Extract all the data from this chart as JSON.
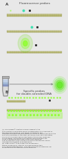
{
  "bg_color": "#e8e8e8",
  "panel_a_bg": "#e0e4e0",
  "panel_b_bg": "#e0e4e0",
  "title_a": "Fluorescence probes",
  "title_b": "Specific probes\nfor double-stranded DNA",
  "text_a": "A",
  "text_b": "B",
  "dna_top_color": "#c8c890",
  "dna_bot_color": "#b8b870",
  "dna_tick_color": "#909050",
  "green_bright": "#90ff30",
  "green_glow": "#70e010",
  "cyan_color": "#40e0b0",
  "black_sq": "#303030",
  "arrow_color": "#909090",
  "tube_body": "#c8c8c8",
  "tube_liquid": [
    "#8090c0",
    "#a0b8d8",
    "#c0d0e8"
  ],
  "green_circle": "#60e820",
  "text_color": "#404040",
  "caption_color": "#303030"
}
